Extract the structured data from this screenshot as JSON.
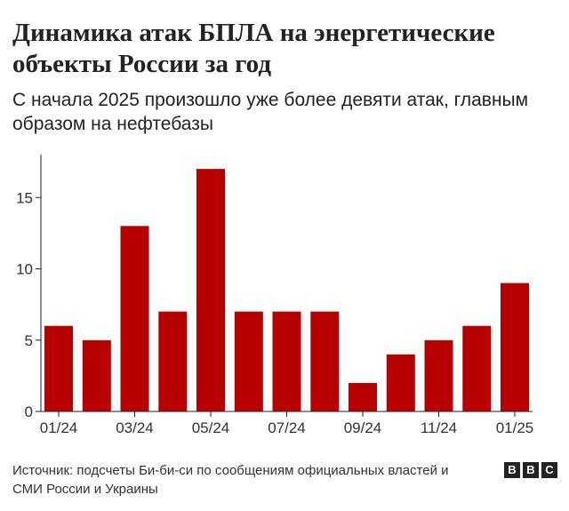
{
  "header": {
    "title": "Динамика атак БПЛА на энергетические объекты России за год",
    "subtitle": "С начала 2025 произошло уже более девяти атак, главным образом на нефтебазы"
  },
  "footer": {
    "source": "Источник: подсчеты Би-би-си по сообщениям официальных властей и СМИ России и Украины",
    "logo_letters": [
      "B",
      "B",
      "C"
    ]
  },
  "colors": {
    "bar": "#b80000",
    "axis": "#222222",
    "text": "#333333"
  },
  "chart_data": {
    "type": "bar",
    "title": "Динамика атак БПЛА на энергетические объекты России за год",
    "subtitle": "С начала 2025 произошло уже более девяти атак, главным образом на нефтебазы",
    "xlabel": "",
    "ylabel": "",
    "categories": [
      "01/24",
      "02/24",
      "03/24",
      "04/24",
      "05/24",
      "06/24",
      "07/24",
      "08/24",
      "09/24",
      "10/24",
      "11/24",
      "12/24",
      "01/25"
    ],
    "values": [
      6,
      5,
      13,
      7,
      17,
      7,
      7,
      7,
      2,
      4,
      5,
      6,
      9
    ],
    "x_tick_labels": [
      "01/24",
      "03/24",
      "05/24",
      "07/24",
      "09/24",
      "11/24",
      "01/25"
    ],
    "y_ticks": [
      0,
      5,
      10,
      15
    ],
    "ylim": [
      0,
      18
    ],
    "grid": false,
    "legend": "none"
  }
}
